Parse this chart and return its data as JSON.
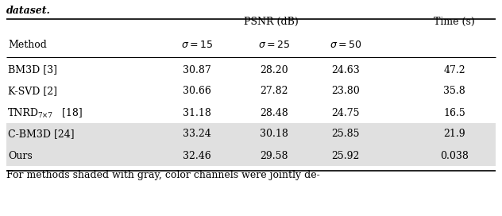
{
  "title_top": "dataset.",
  "col_header_2": "PSNR (dB)",
  "col_header_3": "Time (s)",
  "sub_headers": [
    "σ = 15",
    "σ = 25",
    "σ = 50"
  ],
  "rows": [
    {
      "method": "BM3D [3]",
      "is_tnrd": false,
      "sigma15": "30.87",
      "sigma25": "28.20",
      "sigma50": "24.63",
      "time": "47.2",
      "shaded": false
    },
    {
      "method": "K-SVD [2]",
      "is_tnrd": false,
      "sigma15": "30.66",
      "sigma25": "27.82",
      "sigma50": "23.80",
      "time": "35.8",
      "shaded": false
    },
    {
      "method": "TNRD",
      "is_tnrd": true,
      "sigma15": "31.18",
      "sigma25": "28.48",
      "sigma50": "24.75",
      "time": "16.5",
      "shaded": false
    },
    {
      "method": "C-BM3D [24]",
      "is_tnrd": false,
      "sigma15": "33.24",
      "sigma25": "30.18",
      "sigma50": "25.85",
      "time": "21.9",
      "shaded": true
    },
    {
      "method": "Ours",
      "is_tnrd": false,
      "sigma15": "32.46",
      "sigma25": "29.58",
      "sigma50": "25.92",
      "time": "0.038",
      "shaded": true
    }
  ],
  "footer": "For methods shaded with gray, color channels were jointly de-",
  "shaded_color": "#e0e0e0",
  "bg_color": "#ffffff",
  "text_color": "#000000",
  "font_size": 9.0,
  "header_font_size": 9.0
}
